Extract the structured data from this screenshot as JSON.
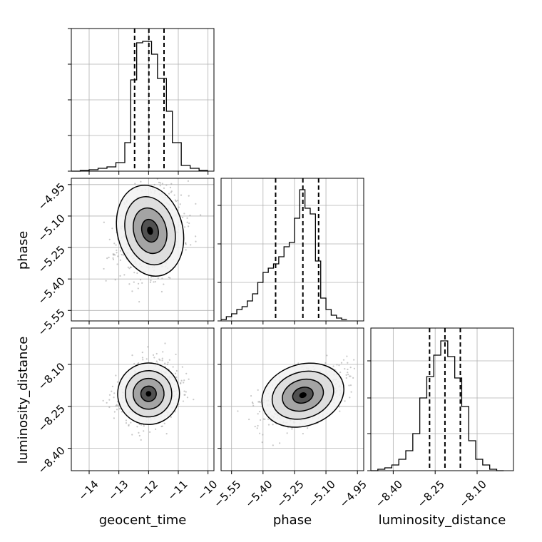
{
  "chart_data": {
    "type": "corner",
    "parameters": [
      "geocent_time",
      "phase",
      "luminosity_distance"
    ],
    "axis_labels": {
      "bottom": [
        "geocent_time",
        "phase",
        "luminosity_distance"
      ],
      "left": [
        "",
        "phase",
        "luminosity_distance"
      ]
    },
    "grid": true,
    "colors": {
      "hist": "#000000",
      "points": "#9a9a9a",
      "contour": "#000000"
    },
    "axes": {
      "geocent_time": {
        "lim": [
          -14.6,
          -9.8
        ],
        "ticks": [
          -14,
          -13,
          -12,
          -11,
          -10
        ],
        "tick_labels": [
          "−14",
          "−13",
          "−12",
          "−11",
          "−10"
        ]
      },
      "phase": {
        "lim": [
          -5.6,
          -4.92
        ],
        "ticks": [
          -5.55,
          -5.4,
          -5.25,
          -5.1,
          -4.95
        ],
        "tick_labels": [
          "−5.55",
          "−5.40",
          "−5.25",
          "−5.10",
          "−4.95"
        ]
      },
      "luminosity_distance": {
        "lim": [
          -8.48,
          -7.97
        ],
        "ticks": [
          -8.4,
          -8.25,
          -8.1
        ],
        "tick_labels": [
          "−8.40",
          "−8.25",
          "−8.10"
        ]
      }
    },
    "histograms": [
      {
        "param": "geocent_time",
        "ymax": 1.0,
        "y_ticks": [
          0,
          0.25,
          0.5,
          0.75,
          1.0
        ],
        "bins": [
          [
            -14.6,
            -14.3,
            0.0
          ],
          [
            -14.3,
            -14.0,
            0.005
          ],
          [
            -14.0,
            -13.7,
            0.01
          ],
          [
            -13.7,
            -13.4,
            0.02
          ],
          [
            -13.4,
            -13.1,
            0.03
          ],
          [
            -13.1,
            -12.8,
            0.06
          ],
          [
            -12.8,
            -12.6,
            0.2
          ],
          [
            -12.6,
            -12.4,
            0.64
          ],
          [
            -12.4,
            -12.2,
            0.9
          ],
          [
            -12.2,
            -11.9,
            0.91
          ],
          [
            -11.9,
            -11.7,
            0.82
          ],
          [
            -11.7,
            -11.4,
            0.65
          ],
          [
            -11.4,
            -11.2,
            0.42
          ],
          [
            -11.2,
            -10.9,
            0.2
          ],
          [
            -10.9,
            -10.6,
            0.04
          ],
          [
            -10.6,
            -10.3,
            0.02
          ],
          [
            -10.3,
            -10.0,
            0.005
          ]
        ],
        "quantiles": [
          -12.47,
          -11.99,
          -11.48
        ]
      },
      {
        "param": "phase",
        "ymax": 1.0,
        "y_ticks": [
          0,
          0.27,
          0.54,
          0.81
        ],
        "bins": [
          [
            -5.6,
            -5.575,
            0.01
          ],
          [
            -5.575,
            -5.55,
            0.03
          ],
          [
            -5.55,
            -5.525,
            0.05
          ],
          [
            -5.525,
            -5.5,
            0.08
          ],
          [
            -5.5,
            -5.475,
            0.1
          ],
          [
            -5.475,
            -5.45,
            0.14
          ],
          [
            -5.45,
            -5.425,
            0.19
          ],
          [
            -5.425,
            -5.4,
            0.27
          ],
          [
            -5.4,
            -5.375,
            0.34
          ],
          [
            -5.375,
            -5.35,
            0.37
          ],
          [
            -5.35,
            -5.325,
            0.4
          ],
          [
            -5.325,
            -5.3,
            0.45
          ],
          [
            -5.3,
            -5.275,
            0.52
          ],
          [
            -5.275,
            -5.25,
            0.55
          ],
          [
            -5.25,
            -5.225,
            0.72
          ],
          [
            -5.225,
            -5.2,
            0.92
          ],
          [
            -5.2,
            -5.175,
            0.79
          ],
          [
            -5.175,
            -5.15,
            0.75
          ],
          [
            -5.15,
            -5.125,
            0.42
          ],
          [
            -5.125,
            -5.1,
            0.16
          ],
          [
            -5.1,
            -5.075,
            0.08
          ],
          [
            -5.075,
            -5.05,
            0.04
          ],
          [
            -5.05,
            -5.025,
            0.02
          ],
          [
            -5.025,
            -5.0,
            0.01
          ]
        ],
        "quantiles": [
          -5.34,
          -5.21,
          -5.135
        ]
      },
      {
        "param": "luminosity_distance",
        "ymax": 1.0,
        "y_ticks": [
          0,
          0.26,
          0.51,
          0.77
        ],
        "bins": [
          [
            -8.48,
            -8.455,
            0.0
          ],
          [
            -8.455,
            -8.43,
            0.01
          ],
          [
            -8.43,
            -8.405,
            0.02
          ],
          [
            -8.405,
            -8.38,
            0.04
          ],
          [
            -8.38,
            -8.355,
            0.08
          ],
          [
            -8.355,
            -8.33,
            0.14
          ],
          [
            -8.33,
            -8.305,
            0.26
          ],
          [
            -8.305,
            -8.28,
            0.51
          ],
          [
            -8.28,
            -8.255,
            0.66
          ],
          [
            -8.255,
            -8.23,
            0.81
          ],
          [
            -8.23,
            -8.205,
            0.91
          ],
          [
            -8.205,
            -8.18,
            0.8
          ],
          [
            -8.18,
            -8.155,
            0.65
          ],
          [
            -8.155,
            -8.13,
            0.45
          ],
          [
            -8.13,
            -8.105,
            0.21
          ],
          [
            -8.105,
            -8.08,
            0.08
          ],
          [
            -8.08,
            -8.055,
            0.04
          ],
          [
            -8.055,
            -8.03,
            0.01
          ],
          [
            -8.03,
            -8.005,
            0.0
          ]
        ],
        "quantiles": [
          -8.27,
          -8.215,
          -8.16
        ]
      }
    ],
    "scatter_panels": [
      {
        "x": "geocent_time",
        "y": "phase",
        "center": [
          -11.95,
          -5.17
        ],
        "spread": [
          0.55,
          0.11
        ],
        "rho": 0.18,
        "n_points": 650,
        "seed": 11
      },
      {
        "x": "geocent_time",
        "y": "luminosity_distance",
        "center": [
          -12.0,
          -8.205
        ],
        "spread": [
          0.52,
          0.055
        ],
        "rho": 0.12,
        "n_points": 650,
        "seed": 23
      },
      {
        "x": "phase",
        "y": "luminosity_distance",
        "center": [
          -5.21,
          -8.21
        ],
        "spread": [
          0.1,
          0.055
        ],
        "rho": 0.45,
        "n_points": 650,
        "seed": 37
      }
    ]
  }
}
